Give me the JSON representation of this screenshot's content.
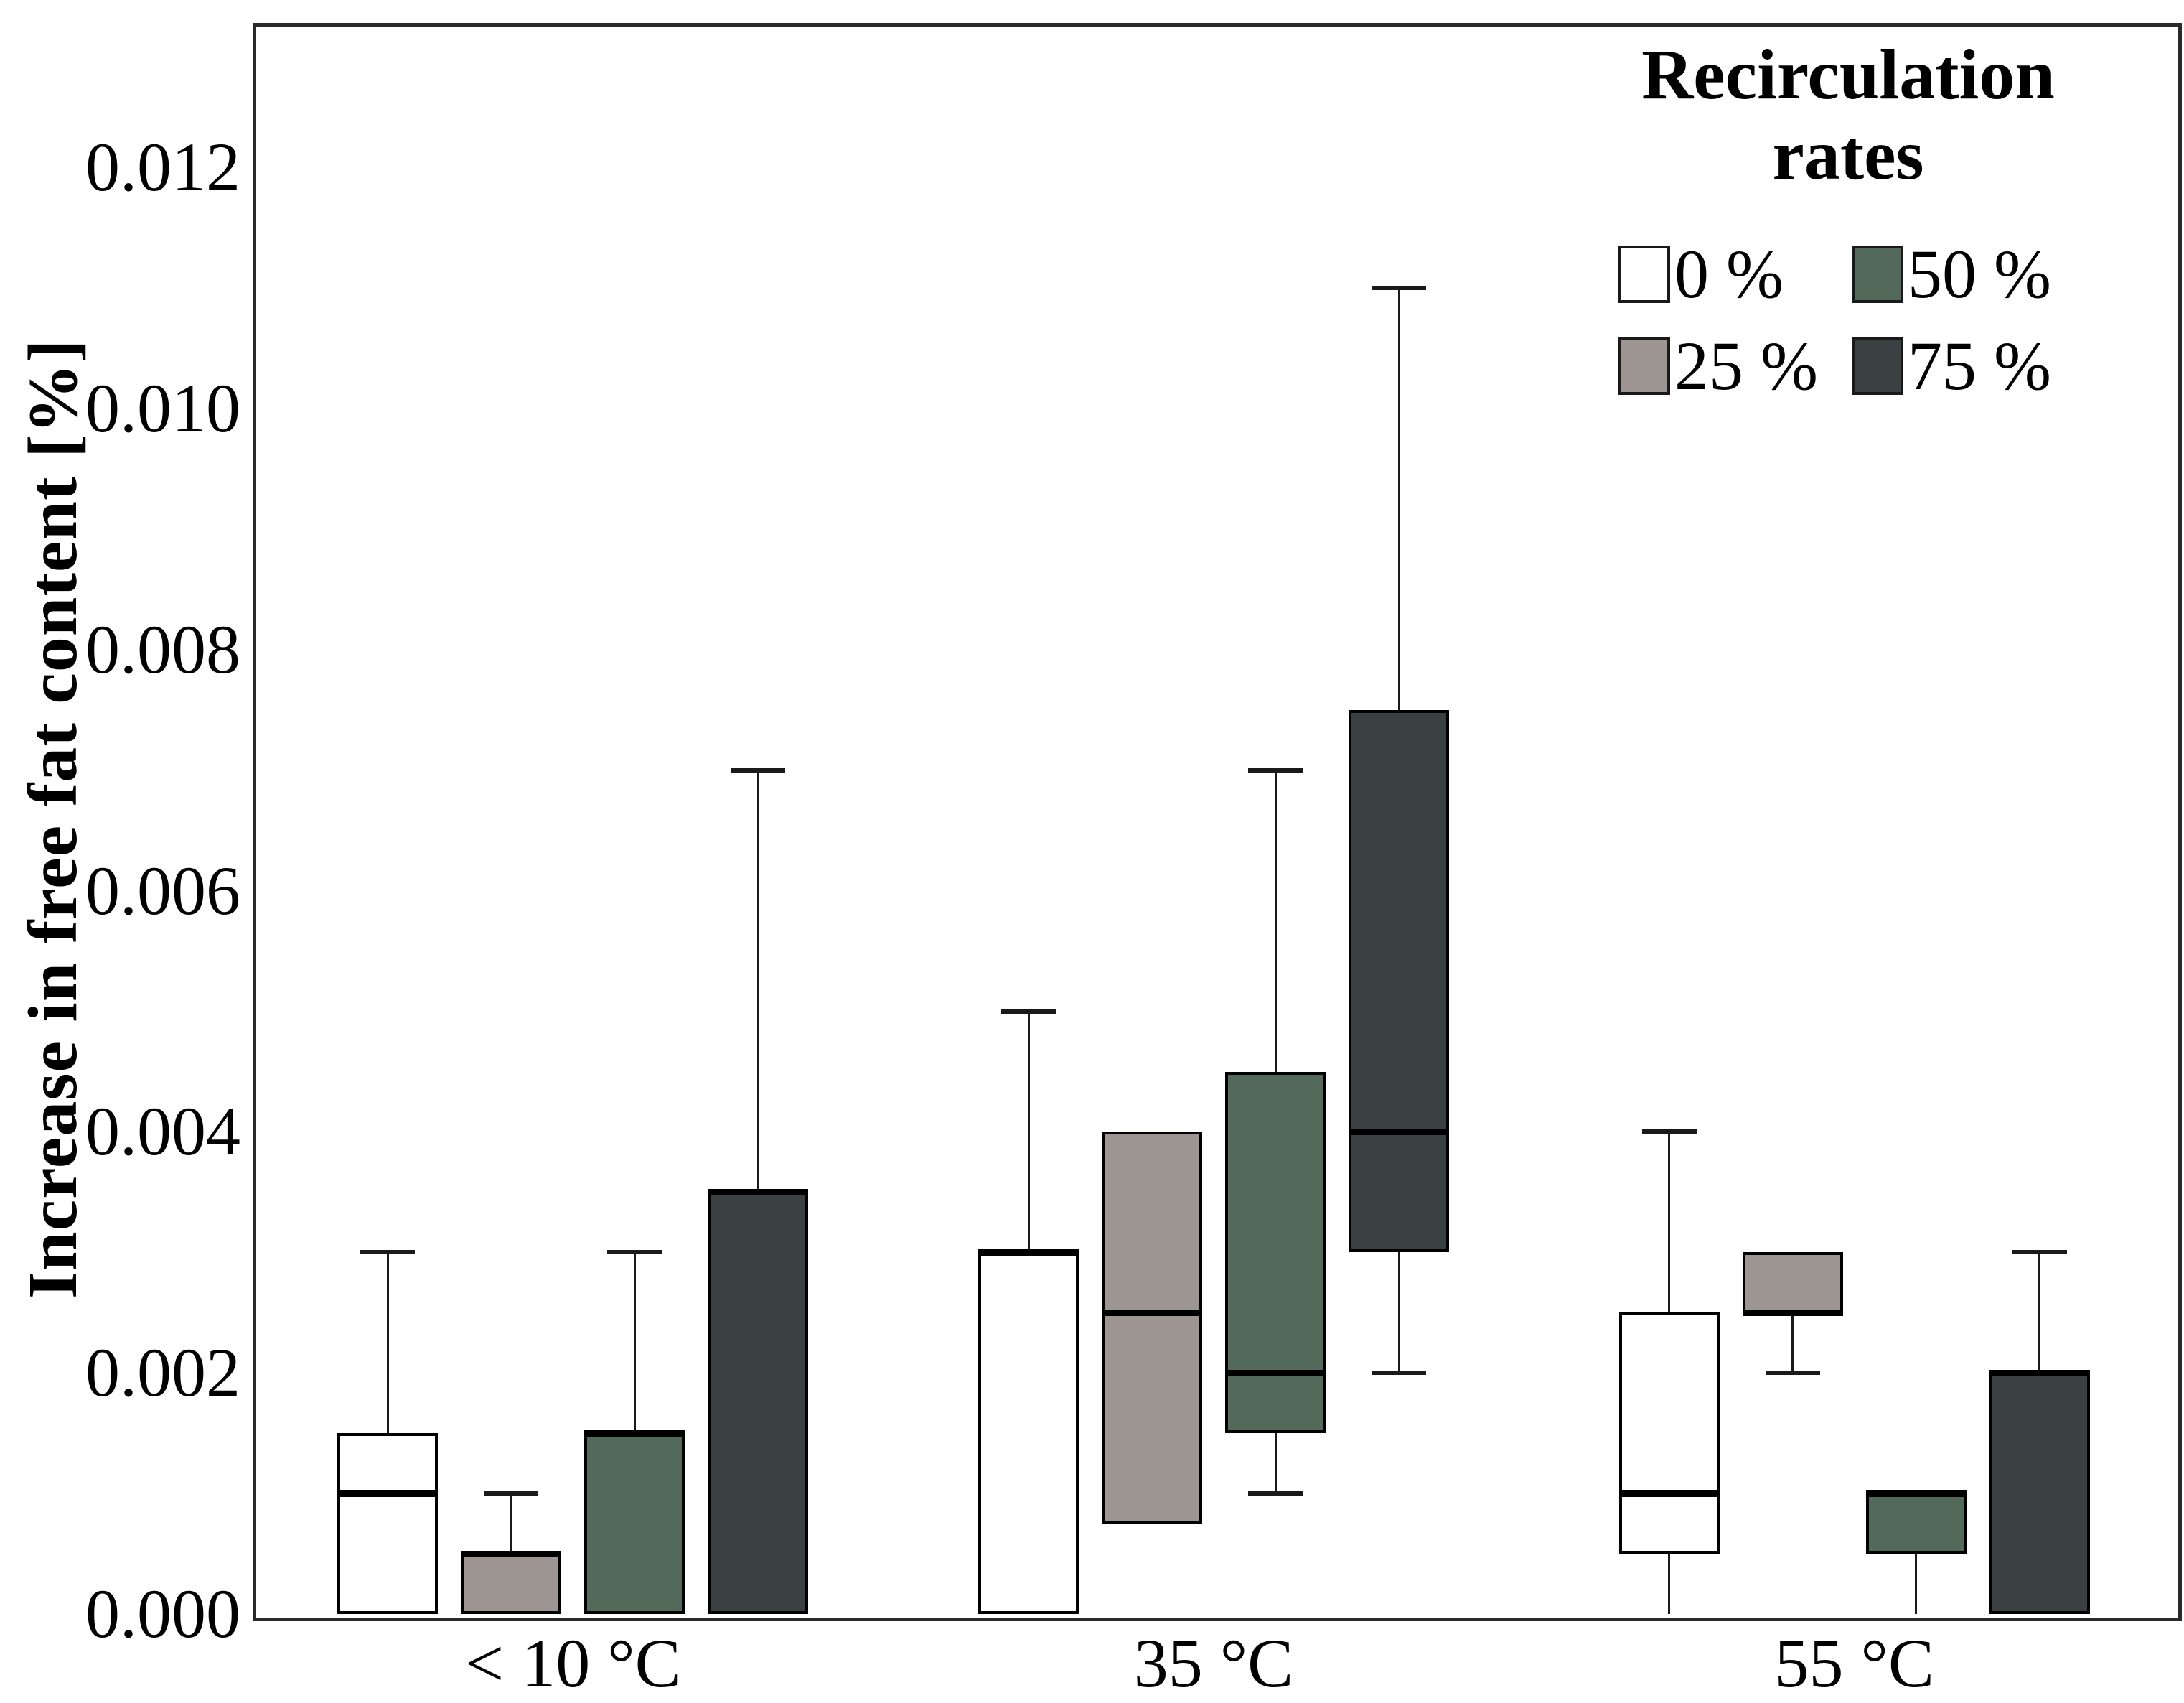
{
  "chart_data": {
    "type": "boxplot",
    "title": "",
    "xlabel": "",
    "ylabel": "Increase in free fat content [%]",
    "ylim": [
      0,
      0.0132
    ],
    "yticks": [
      0.0,
      0.002,
      0.004,
      0.006,
      0.008,
      0.01,
      0.012
    ],
    "ytick_labels": [
      "0.000",
      "0.002",
      "0.004",
      "0.006",
      "0.008",
      "0.010",
      "0.012"
    ],
    "categories": [
      "< 10 °C",
      "35 °C",
      "55 °C"
    ],
    "grid": false,
    "legend": {
      "title_lines": [
        "Recirculation",
        "rates"
      ],
      "position": "top-right",
      "display_order": [
        0,
        2,
        1,
        3
      ]
    },
    "series": [
      {
        "name": "0 %",
        "color": "#ffffff",
        "boxes": [
          {
            "category": "< 10 °C",
            "q1": 0.0,
            "median": 0.001,
            "q3": 0.0015,
            "whisker_high": 0.003,
            "whisker_low": null
          },
          {
            "category": "35 °C",
            "q1": 0.0,
            "median": 0.003,
            "q3": 0.003,
            "whisker_high": 0.005,
            "whisker_low": null
          },
          {
            "category": "55 °C",
            "q1": 0.0005,
            "median": 0.001,
            "q3": 0.0025,
            "whisker_high": 0.004,
            "whisker_low": 0.0
          }
        ]
      },
      {
        "name": "25 %",
        "color": "#9c9591",
        "boxes": [
          {
            "category": "< 10 °C",
            "q1": 0.0,
            "median": 0.0005,
            "q3": 0.0005,
            "whisker_high": 0.001,
            "whisker_low": null
          },
          {
            "category": "35 °C",
            "q1": 0.00075,
            "median": 0.0025,
            "q3": 0.004,
            "whisker_high": null,
            "whisker_low": null
          },
          {
            "category": "55 °C",
            "q1": 0.0025,
            "median": 0.0025,
            "q3": 0.003,
            "whisker_high": null,
            "whisker_low": 0.002
          }
        ]
      },
      {
        "name": "50 %",
        "color": "#536959",
        "boxes": [
          {
            "category": "< 10 °C",
            "q1": 0.0,
            "median": 0.0015,
            "q3": 0.0015,
            "whisker_high": 0.003,
            "whisker_low": null
          },
          {
            "category": "35 °C",
            "q1": 0.0015,
            "median": 0.002,
            "q3": 0.0045,
            "whisker_high": 0.007,
            "whisker_low": 0.001
          },
          {
            "category": "55 °C",
            "q1": 0.0005,
            "median": 0.001,
            "q3": 0.001,
            "whisker_high": null,
            "whisker_low": 0.0
          }
        ]
      },
      {
        "name": "75 %",
        "color": "#3b4043",
        "boxes": [
          {
            "category": "< 10 °C",
            "q1": 0.0,
            "median": 0.0035,
            "q3": 0.0035,
            "whisker_high": 0.007,
            "whisker_low": null
          },
          {
            "category": "35 °C",
            "q1": 0.003,
            "median": 0.004,
            "q3": 0.0075,
            "whisker_high": 0.011,
            "whisker_low": 0.002
          },
          {
            "category": "55 °C",
            "q1": 0.0,
            "median": 0.002,
            "q3": 0.002,
            "whisker_high": 0.003,
            "whisker_low": null
          }
        ]
      }
    ]
  }
}
